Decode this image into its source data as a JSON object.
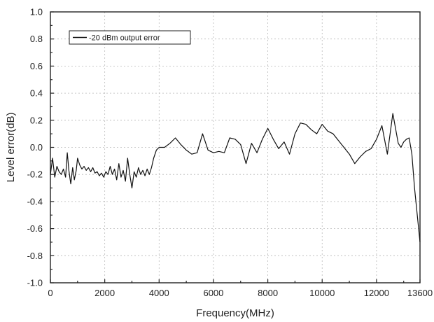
{
  "chart_data": {
    "type": "line",
    "title": "",
    "xlabel": "Frequency(MHz)",
    "ylabel": "Level error(dB)",
    "xlim": [
      0,
      13600
    ],
    "ylim": [
      -1.0,
      1.0
    ],
    "xticks": [
      0,
      2000,
      4000,
      6000,
      8000,
      10000,
      12000,
      13600
    ],
    "xtick_labels": [
      "0",
      "2000",
      "4000",
      "6000",
      "8000",
      "10000",
      "12000",
      "13600"
    ],
    "yticks": [
      -1.0,
      -0.8,
      -0.6,
      -0.4,
      -0.2,
      0.0,
      0.2,
      0.4,
      0.6,
      0.8,
      1.0
    ],
    "ytick_labels": [
      "-1.0",
      "-0.8",
      "-0.6",
      "-0.4",
      "-0.2",
      "0.0",
      "0.2",
      "0.4",
      "0.6",
      "0.8",
      "1.0"
    ],
    "grid": true,
    "legend_position": "top-left",
    "series_color": "#111111",
    "series": [
      {
        "name": "-20 dBm output error",
        "x": [
          0,
          80,
          160,
          240,
          320,
          400,
          480,
          560,
          620,
          680,
          750,
          820,
          880,
          950,
          1000,
          1080,
          1160,
          1240,
          1320,
          1400,
          1480,
          1560,
          1640,
          1720,
          1800,
          1880,
          1960,
          2040,
          2120,
          2200,
          2280,
          2360,
          2440,
          2520,
          2600,
          2680,
          2760,
          2840,
          2920,
          3000,
          3080,
          3160,
          3240,
          3320,
          3400,
          3480,
          3560,
          3640,
          3720,
          3800,
          3900,
          4000,
          4200,
          4400,
          4600,
          4800,
          5000,
          5200,
          5400,
          5600,
          5800,
          6000,
          6200,
          6400,
          6600,
          6800,
          7000,
          7200,
          7400,
          7600,
          7800,
          8000,
          8200,
          8400,
          8600,
          8800,
          9000,
          9200,
          9400,
          9600,
          9800,
          10000,
          10200,
          10400,
          10600,
          10800,
          11000,
          11200,
          11400,
          11600,
          11800,
          12000,
          12200,
          12400,
          12600,
          12800,
          12900,
          13000,
          13100,
          13200,
          13300,
          13400,
          13500,
          13600
        ],
        "y": [
          -0.2,
          -0.08,
          -0.22,
          -0.14,
          -0.18,
          -0.2,
          -0.16,
          -0.22,
          -0.04,
          -0.17,
          -0.27,
          -0.15,
          -0.24,
          -0.17,
          -0.08,
          -0.13,
          -0.16,
          -0.14,
          -0.17,
          -0.15,
          -0.18,
          -0.15,
          -0.19,
          -0.18,
          -0.21,
          -0.19,
          -0.22,
          -0.18,
          -0.2,
          -0.14,
          -0.2,
          -0.16,
          -0.24,
          -0.12,
          -0.22,
          -0.17,
          -0.25,
          -0.08,
          -0.2,
          -0.3,
          -0.18,
          -0.22,
          -0.15,
          -0.2,
          -0.17,
          -0.21,
          -0.16,
          -0.2,
          -0.15,
          -0.08,
          -0.02,
          0.0,
          0.0,
          0.03,
          0.07,
          0.02,
          -0.02,
          -0.05,
          -0.04,
          0.1,
          -0.02,
          -0.04,
          -0.03,
          -0.04,
          0.07,
          0.06,
          0.02,
          -0.12,
          0.03,
          -0.04,
          0.06,
          0.14,
          0.06,
          -0.01,
          0.04,
          -0.05,
          0.1,
          0.18,
          0.17,
          0.13,
          0.1,
          0.17,
          0.12,
          0.1,
          0.05,
          0.0,
          -0.05,
          -0.12,
          -0.07,
          -0.03,
          -0.01,
          0.06,
          0.16,
          -0.05,
          0.25,
          0.03,
          0.0,
          0.04,
          0.06,
          0.07,
          -0.05,
          -0.3,
          -0.5,
          -0.7
        ]
      }
    ]
  }
}
